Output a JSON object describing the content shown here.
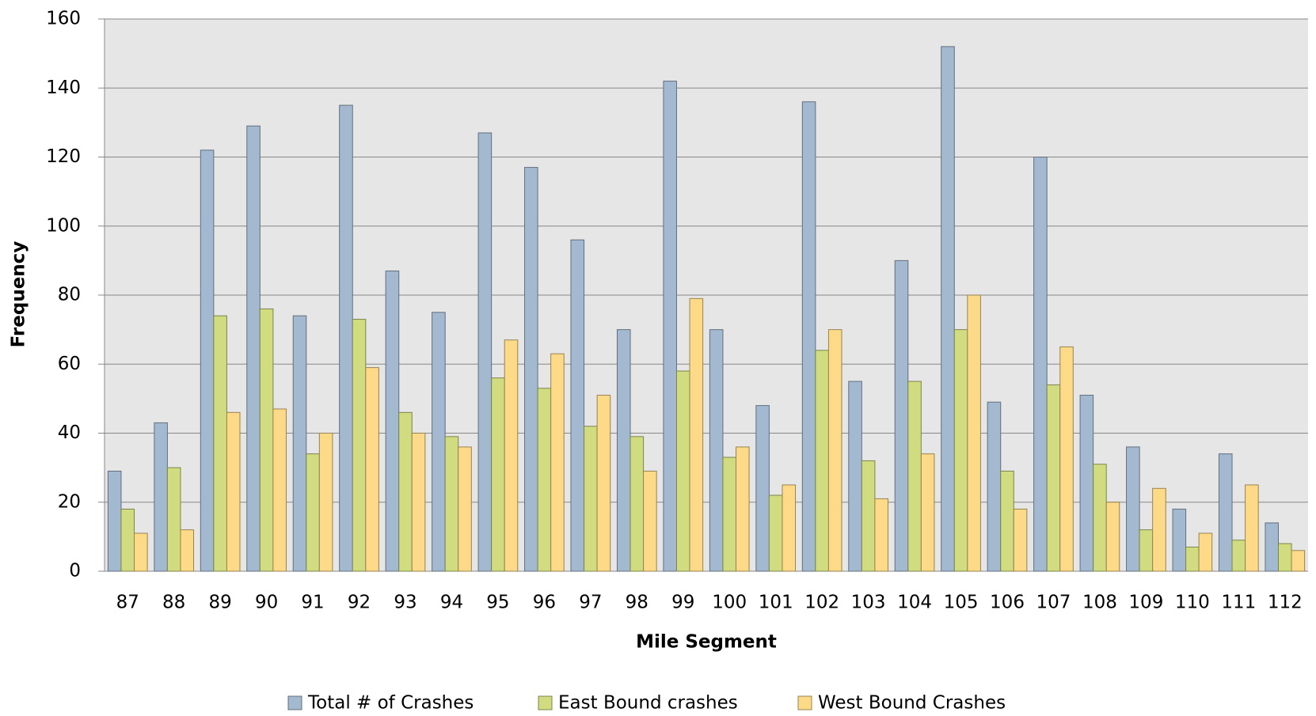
{
  "chart_data": {
    "type": "bar",
    "x_label": "Mile Segment",
    "y_label": "Frequency",
    "categories": [
      "87",
      "88",
      "89",
      "90",
      "91",
      "92",
      "93",
      "94",
      "95",
      "96",
      "97",
      "98",
      "99",
      "100",
      "101",
      "102",
      "103",
      "104",
      "105",
      "106",
      "107",
      "108",
      "109",
      "110",
      "111",
      "112"
    ],
    "series": [
      {
        "name": "Total # of Crashes",
        "color": "#a3b9d0",
        "values": [
          29,
          43,
          122,
          129,
          74,
          135,
          87,
          75,
          127,
          117,
          96,
          70,
          142,
          70,
          48,
          136,
          55,
          90,
          152,
          49,
          120,
          51,
          36,
          18,
          34,
          14
        ]
      },
      {
        "name": "East Bound crashes",
        "color": "#d0dc7f",
        "values": [
          18,
          30,
          74,
          76,
          34,
          73,
          46,
          39,
          56,
          53,
          42,
          39,
          58,
          33,
          22,
          64,
          32,
          55,
          70,
          29,
          54,
          31,
          12,
          7,
          9,
          8
        ]
      },
      {
        "name": "West Bound Crashes",
        "color": "#fdda87",
        "values": [
          11,
          12,
          46,
          47,
          40,
          59,
          40,
          36,
          67,
          63,
          51,
          29,
          79,
          36,
          25,
          70,
          21,
          34,
          80,
          18,
          65,
          20,
          24,
          11,
          25,
          6
        ]
      }
    ],
    "ylim": [
      0,
      160
    ],
    "yticks": [
      0,
      20,
      40,
      60,
      80,
      100,
      120,
      140,
      160
    ],
    "grid": true,
    "legend": "bottom"
  }
}
